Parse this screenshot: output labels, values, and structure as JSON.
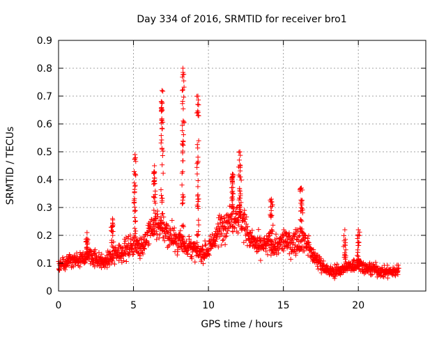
{
  "chart_data": {
    "type": "scatter",
    "title": "Day 334 of 2016, SRMTID for receiver bro1",
    "xlabel": "GPS time / hours",
    "ylabel": "SRMTID / TECUs",
    "xlim": [
      0,
      24.5
    ],
    "ylim": [
      0,
      0.9
    ],
    "xticks": [
      0,
      5,
      10,
      15,
      20
    ],
    "yticks": [
      0,
      0.1,
      0.2,
      0.3,
      0.4,
      0.5,
      0.6,
      0.7,
      0.8,
      0.9
    ],
    "xtick_labels": [
      "0",
      "5",
      "10",
      "15",
      "20"
    ],
    "ytick_labels": [
      "0",
      "0.1",
      "0.2",
      "0.3",
      "0.4",
      "0.5",
      "0.6",
      "0.7",
      "0.8",
      "0.9"
    ],
    "grid": true,
    "marker": "+",
    "marker_color": "#ff0000",
    "trend": {
      "x": [
        0,
        0.5,
        1,
        1.5,
        2,
        2.5,
        3,
        3.5,
        4,
        4.5,
        5,
        5.5,
        6,
        6.5,
        7,
        7.5,
        8,
        8.5,
        9,
        9.5,
        10,
        10.5,
        11,
        11.5,
        12,
        12.5,
        13,
        13.5,
        14,
        14.5,
        15,
        15.5,
        16,
        16.5,
        17,
        17.5,
        18,
        18.5,
        19,
        19.5,
        20,
        20.5,
        21,
        21.5,
        22,
        22.5,
        22.7
      ],
      "y": [
        0.09,
        0.1,
        0.11,
        0.11,
        0.13,
        0.12,
        0.1,
        0.12,
        0.14,
        0.15,
        0.17,
        0.16,
        0.2,
        0.25,
        0.22,
        0.2,
        0.18,
        0.17,
        0.15,
        0.13,
        0.15,
        0.2,
        0.24,
        0.27,
        0.28,
        0.22,
        0.17,
        0.16,
        0.17,
        0.16,
        0.18,
        0.17,
        0.19,
        0.18,
        0.12,
        0.1,
        0.07,
        0.07,
        0.08,
        0.09,
        0.1,
        0.08,
        0.08,
        0.07,
        0.07,
        0.07,
        0.08
      ]
    },
    "spikes": [
      {
        "x": 1.9,
        "peak": 0.21
      },
      {
        "x": 3.6,
        "peak": 0.26
      },
      {
        "x": 5.1,
        "peak": 0.49
      },
      {
        "x": 6.4,
        "peak": 0.45
      },
      {
        "x": 6.9,
        "peak": 0.72
      },
      {
        "x": 8.3,
        "peak": 0.8
      },
      {
        "x": 9.3,
        "peak": 0.7
      },
      {
        "x": 11.6,
        "peak": 0.42
      },
      {
        "x": 12.1,
        "peak": 0.5
      },
      {
        "x": 14.2,
        "peak": 0.33
      },
      {
        "x": 16.2,
        "peak": 0.37
      },
      {
        "x": 19.1,
        "peak": 0.22
      },
      {
        "x": 20.0,
        "peak": 0.22
      }
    ],
    "x_max_data": 22.7
  }
}
